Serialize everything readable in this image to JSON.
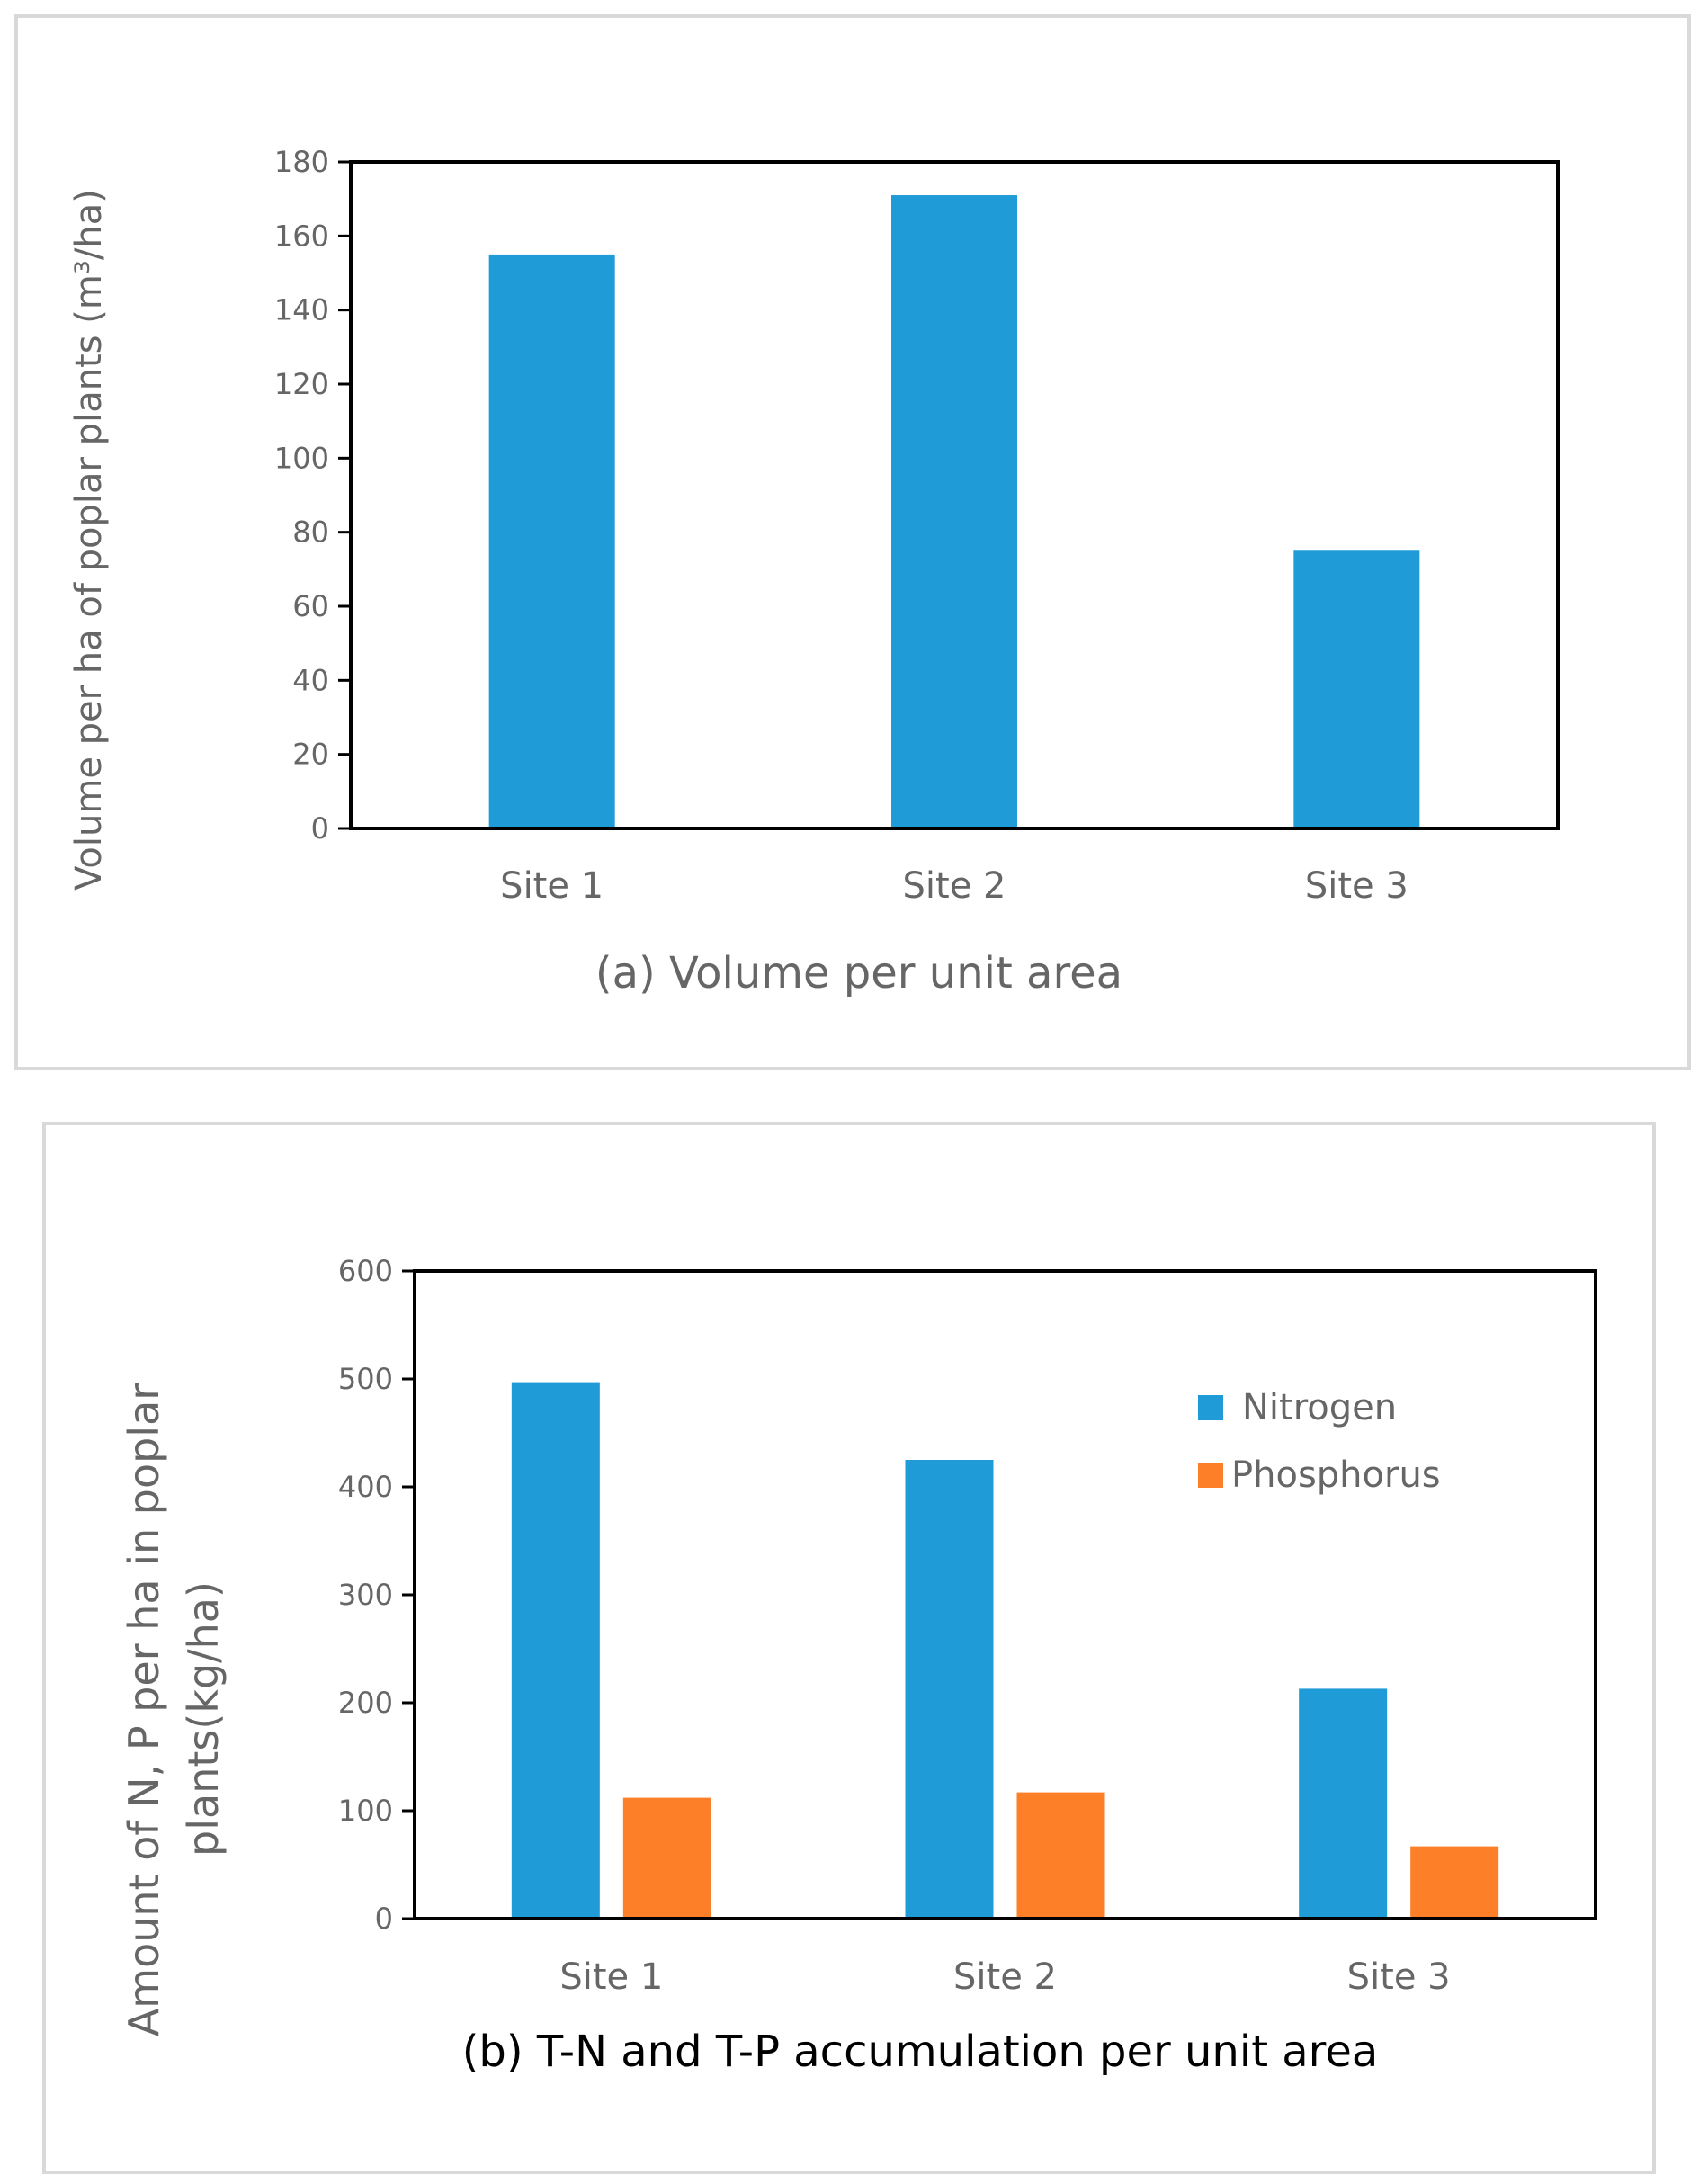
{
  "colors": {
    "nitrogen": "#1f9bd7",
    "phosphorus": "#fd7f28",
    "axis_text": "#666666"
  },
  "chart_data": [
    {
      "type": "bar",
      "title": "(a) Volume per unit area",
      "xlabel": "",
      "ylabel": "Volume per ha of poplar plants (m³/ha)",
      "categories": [
        "Site 1",
        "Site 2",
        "Site 3"
      ],
      "series": [
        {
          "name": "Volume",
          "values": [
            155,
            171,
            75
          ]
        }
      ],
      "ylim": [
        0,
        180
      ],
      "yticks": [
        "0",
        "20",
        "40",
        "60",
        "80",
        "100",
        "120",
        "140",
        "160",
        "180"
      ],
      "legend": null
    },
    {
      "type": "bar",
      "title": "(b) T-N and T-P accumulation per unit area",
      "xlabel": "",
      "ylabel_lines": [
        "Amount of N, P  per ha  in poplar",
        "plants(kg/ha)"
      ],
      "categories": [
        "Site 1",
        "Site 2",
        "Site 3"
      ],
      "series": [
        {
          "name": "Nitrogen",
          "values": [
            497,
            425,
            213
          ]
        },
        {
          "name": "Phosphorus",
          "values": [
            112,
            117,
            67
          ]
        }
      ],
      "ylim": [
        0,
        600
      ],
      "yticks": [
        "0",
        "100",
        "200",
        "300",
        "400",
        "500",
        "600"
      ],
      "legend": "top-right"
    }
  ]
}
